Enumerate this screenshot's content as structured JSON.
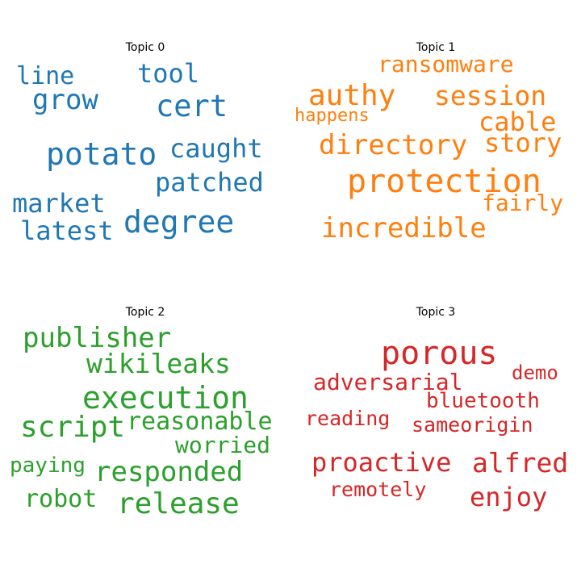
{
  "topics": [
    {
      "title": "Topic 0",
      "color": "#1f77b4",
      "words": [
        {
          "text": "line"
        },
        {
          "text": "tool"
        },
        {
          "text": "grow"
        },
        {
          "text": "cert"
        },
        {
          "text": "caught"
        },
        {
          "text": "potato"
        },
        {
          "text": "patched"
        },
        {
          "text": "market"
        },
        {
          "text": "degree"
        },
        {
          "text": "latest"
        }
      ]
    },
    {
      "title": "Topic 1",
      "color": "#ff7f0e",
      "words": [
        {
          "text": "ransomware"
        },
        {
          "text": "authy"
        },
        {
          "text": "session"
        },
        {
          "text": "happens"
        },
        {
          "text": "cable"
        },
        {
          "text": "directory"
        },
        {
          "text": "story"
        },
        {
          "text": "protection"
        },
        {
          "text": "fairly"
        },
        {
          "text": "incredible"
        }
      ]
    },
    {
      "title": "Topic 2",
      "color": "#2ca02c",
      "words": [
        {
          "text": "publisher"
        },
        {
          "text": "wikileaks"
        },
        {
          "text": "execution"
        },
        {
          "text": "script"
        },
        {
          "text": "reasonable"
        },
        {
          "text": "worried"
        },
        {
          "text": "paying"
        },
        {
          "text": "responded"
        },
        {
          "text": "robot"
        },
        {
          "text": "release"
        }
      ]
    },
    {
      "title": "Topic 3",
      "color": "#d62728",
      "words": [
        {
          "text": "porous"
        },
        {
          "text": "demo"
        },
        {
          "text": "adversarial"
        },
        {
          "text": "bluetooth"
        },
        {
          "text": "reading"
        },
        {
          "text": "sameorigin"
        },
        {
          "text": "proactive"
        },
        {
          "text": "alfred"
        },
        {
          "text": "remotely"
        },
        {
          "text": "enjoy"
        }
      ]
    }
  ]
}
